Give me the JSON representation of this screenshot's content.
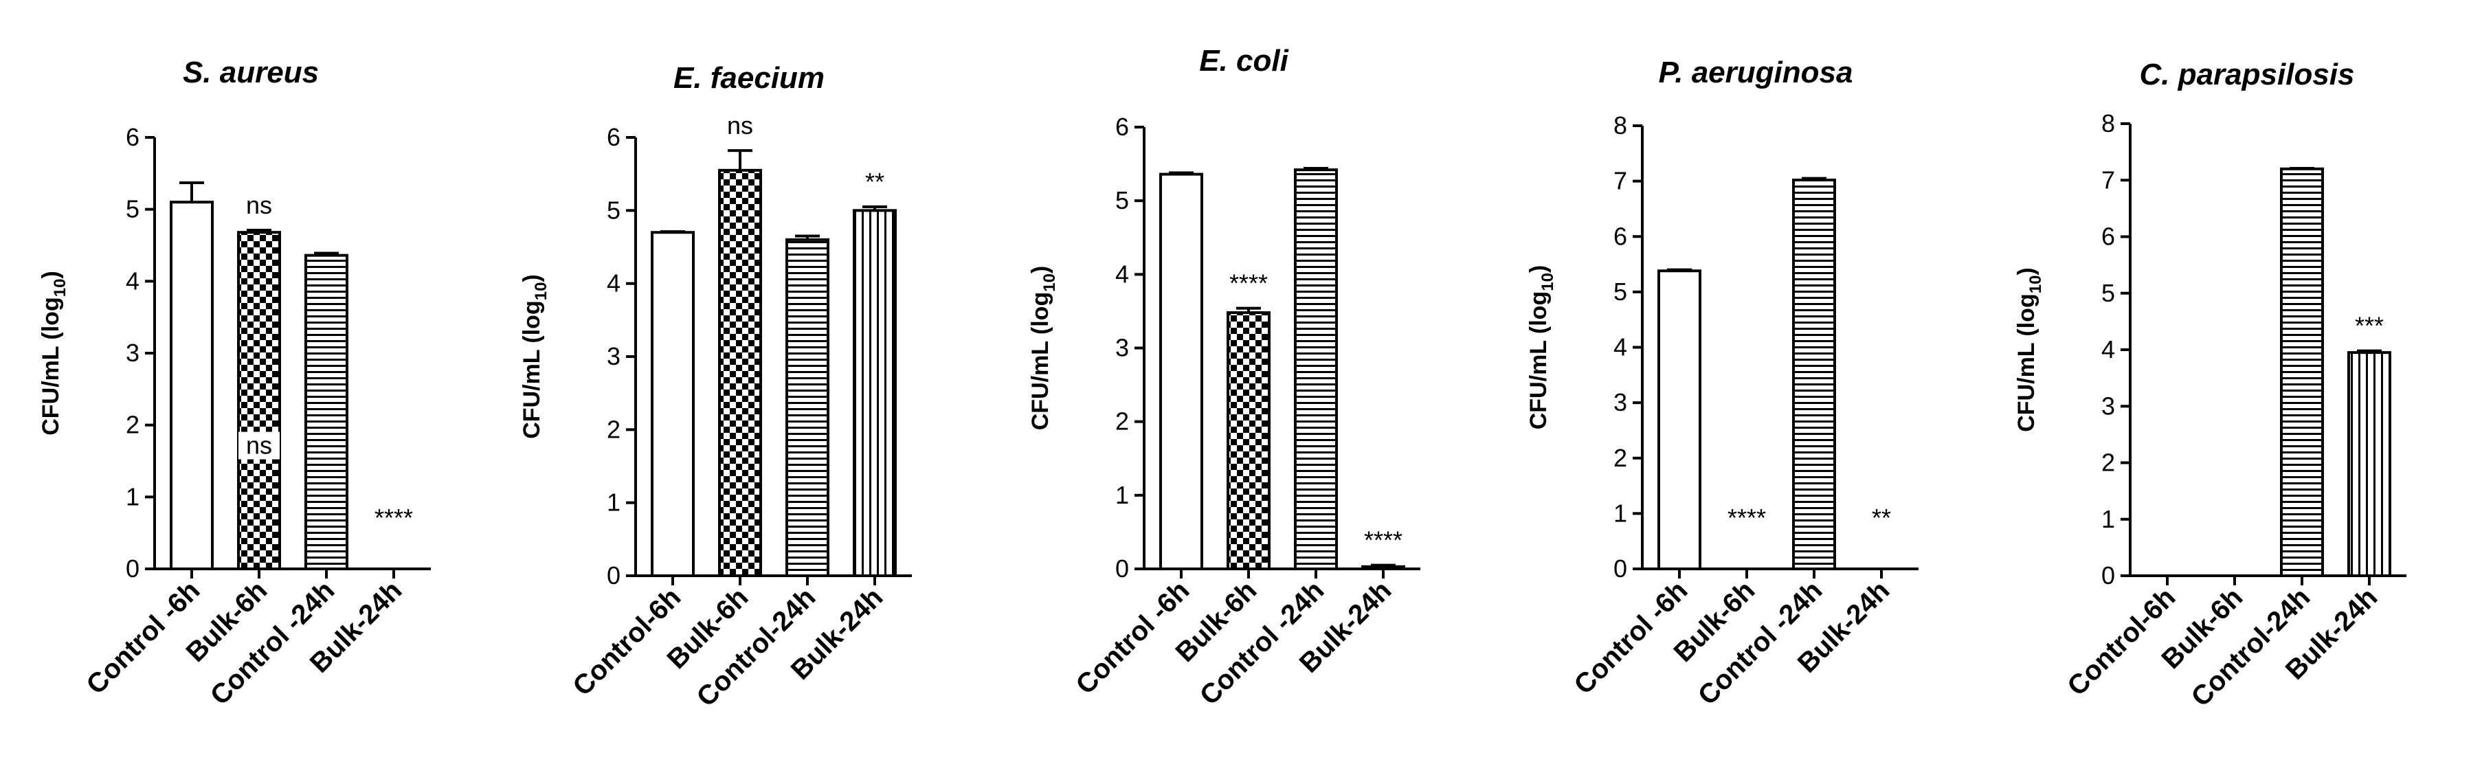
{
  "chart_data": [
    {
      "type": "bar",
      "title": "S. aureus",
      "ylabel": "CFU/mL (log10)",
      "ylabel_prefix": "CFU/mL (log",
      "ylabel_sub": "10",
      "ylabel_suffix": ")",
      "ylim": [
        0,
        6
      ],
      "yticks": [
        "0",
        "1",
        "2",
        "3",
        "4",
        "5",
        "6"
      ],
      "categories": [
        "Control -6h",
        "Bulk-6h",
        "Control -24h",
        "Bulk-24h"
      ],
      "values": [
        5.1,
        4.68,
        4.36,
        0
      ],
      "errors": [
        0.27,
        0.03,
        0.03,
        0
      ],
      "patterns": [
        "open",
        "checker",
        "hstripe",
        "vstripe"
      ],
      "annotations": [
        "",
        "ns",
        "",
        "****"
      ],
      "inner_label": "ns"
    },
    {
      "type": "bar",
      "title": "E. faecium",
      "ylabel": "CFU/mL (log10)",
      "ylabel_prefix": "CFU/mL (log",
      "ylabel_sub": "10",
      "ylabel_suffix": ")",
      "ylim": [
        0,
        6
      ],
      "yticks": [
        "0",
        "1",
        "2",
        "3",
        "4",
        "5",
        "6"
      ],
      "categories": [
        "Control-6h",
        "Bulk-6h",
        "Control-24h",
        "Bulk-24h"
      ],
      "values": [
        4.7,
        5.55,
        4.6,
        5.0
      ],
      "errors": [
        0.01,
        0.27,
        0.05,
        0.05
      ],
      "patterns": [
        "open",
        "checker",
        "hstripe",
        "vstripe"
      ],
      "annotations": [
        "",
        "ns",
        "",
        "**"
      ]
    },
    {
      "type": "bar",
      "title": "E. coli",
      "ylabel": "CFU/mL (log10)",
      "ylabel_prefix": "CFU/mL (log",
      "ylabel_sub": "10",
      "ylabel_suffix": ")",
      "ylim": [
        0,
        6
      ],
      "yticks": [
        "0",
        "1",
        "2",
        "3",
        "4",
        "5",
        "6"
      ],
      "categories": [
        "Control -6h",
        "Bulk-6h",
        "Control -24h",
        "Bulk-24h"
      ],
      "values": [
        5.36,
        3.48,
        5.42,
        0.03
      ],
      "errors": [
        0.02,
        0.06,
        0.02,
        0.02
      ],
      "patterns": [
        "open",
        "checker",
        "hstripe",
        "vstripe"
      ],
      "annotations": [
        "",
        "****",
        "",
        "****"
      ]
    },
    {
      "type": "bar",
      "title": "P. aeruginosa",
      "ylabel": "CFU/mL (log10)",
      "ylabel_prefix": "CFU/mL (log",
      "ylabel_sub": "10",
      "ylabel_suffix": ")",
      "ylim": [
        0,
        8
      ],
      "yticks": [
        "0",
        "1",
        "2",
        "3",
        "4",
        "5",
        "6",
        "7",
        "8"
      ],
      "categories": [
        "Control -6h",
        "Bulk-6h",
        "Control -24h",
        "Bulk-24h"
      ],
      "values": [
        5.38,
        0,
        7.02,
        0
      ],
      "errors": [
        0.02,
        0,
        0.03,
        0
      ],
      "patterns": [
        "open",
        "checker",
        "hstripe",
        "vstripe"
      ],
      "annotations": [
        "",
        "****",
        "",
        "**"
      ]
    },
    {
      "type": "bar",
      "title": "C. parapsilosis",
      "ylabel": "CFU/mL (log10)",
      "ylabel_prefix": "CFU/mL (log",
      "ylabel_sub": "10",
      "ylabel_suffix": ")",
      "ylim": [
        0,
        8
      ],
      "yticks": [
        "0",
        "1",
        "2",
        "3",
        "4",
        "5",
        "6",
        "7",
        "8"
      ],
      "categories": [
        "Control-6h",
        "Bulk-6h",
        "Control-24h",
        "Bulk-24h"
      ],
      "values": [
        0,
        0,
        7.2,
        3.95
      ],
      "errors": [
        0,
        0,
        0.01,
        0.03
      ],
      "patterns": [
        "open",
        "checker",
        "hstripe",
        "vstripe"
      ],
      "annotations": [
        "",
        "",
        "",
        "***"
      ]
    }
  ]
}
